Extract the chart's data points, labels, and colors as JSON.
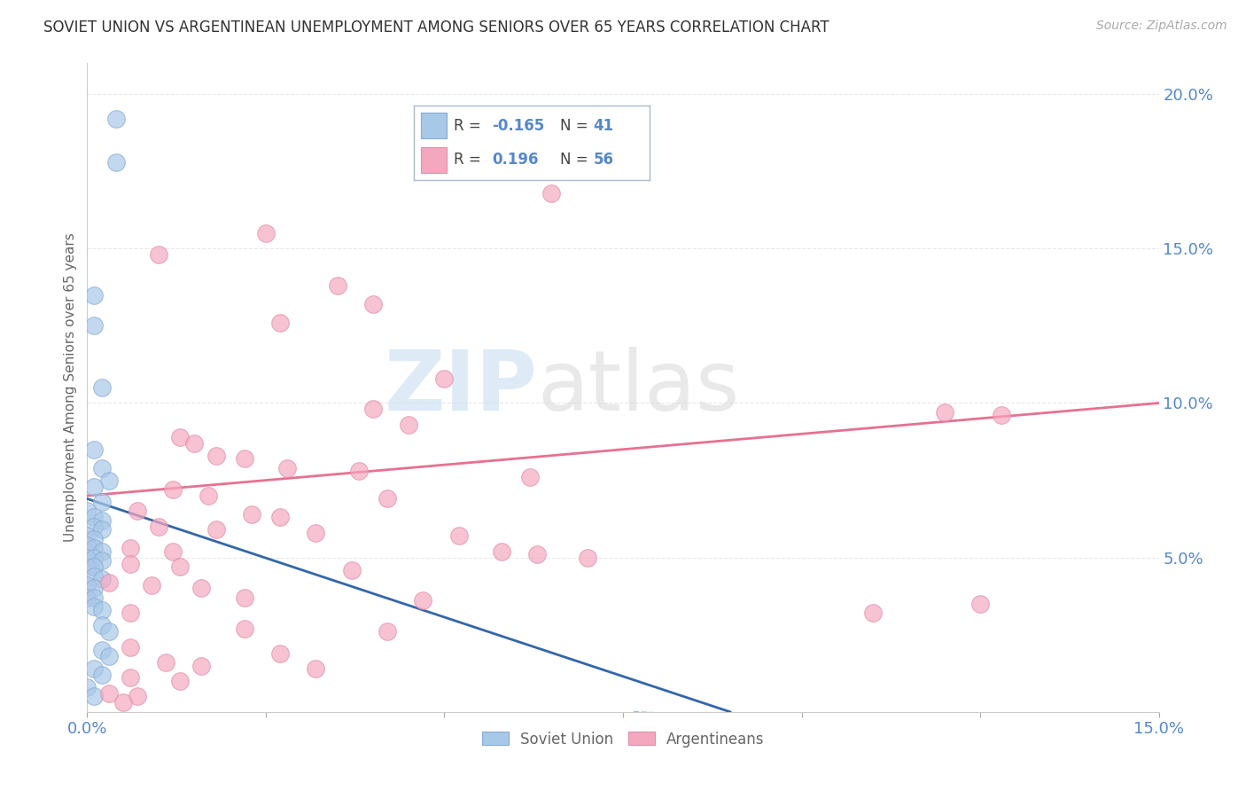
{
  "title": "SOVIET UNION VS ARGENTINEAN UNEMPLOYMENT AMONG SENIORS OVER 65 YEARS CORRELATION CHART",
  "source": "Source: ZipAtlas.com",
  "ylabel": "Unemployment Among Seniors over 65 years",
  "xlim": [
    0.0,
    0.15
  ],
  "ylim": [
    0.0,
    0.21
  ],
  "soviet_R": -0.165,
  "soviet_N": 41,
  "arg_R": 0.196,
  "arg_N": 56,
  "soviet_color": "#a8c8e8",
  "arg_color": "#f4a8c0",
  "soviet_line_color": "#3366aa",
  "arg_line_color": "#e87090",
  "legend_border_color": "#aabbcc",
  "grid_color": "#e8e8e8",
  "tick_color": "#5588cc",
  "soviet_points": [
    [
      0.004,
      0.192
    ],
    [
      0.004,
      0.178
    ],
    [
      0.001,
      0.135
    ],
    [
      0.001,
      0.125
    ],
    [
      0.002,
      0.105
    ],
    [
      0.001,
      0.085
    ],
    [
      0.002,
      0.079
    ],
    [
      0.003,
      0.075
    ],
    [
      0.001,
      0.073
    ],
    [
      0.002,
      0.068
    ],
    [
      0.0,
      0.065
    ],
    [
      0.001,
      0.063
    ],
    [
      0.002,
      0.062
    ],
    [
      0.001,
      0.06
    ],
    [
      0.002,
      0.059
    ],
    [
      0.0,
      0.057
    ],
    [
      0.001,
      0.056
    ],
    [
      0.0,
      0.054
    ],
    [
      0.001,
      0.053
    ],
    [
      0.002,
      0.052
    ],
    [
      0.0,
      0.05
    ],
    [
      0.001,
      0.05
    ],
    [
      0.002,
      0.049
    ],
    [
      0.0,
      0.047
    ],
    [
      0.001,
      0.047
    ],
    [
      0.001,
      0.044
    ],
    [
      0.002,
      0.043
    ],
    [
      0.0,
      0.041
    ],
    [
      0.001,
      0.04
    ],
    [
      0.0,
      0.037
    ],
    [
      0.001,
      0.037
    ],
    [
      0.001,
      0.034
    ],
    [
      0.002,
      0.033
    ],
    [
      0.002,
      0.028
    ],
    [
      0.003,
      0.026
    ],
    [
      0.002,
      0.02
    ],
    [
      0.003,
      0.018
    ],
    [
      0.001,
      0.014
    ],
    [
      0.002,
      0.012
    ],
    [
      0.0,
      0.008
    ],
    [
      0.001,
      0.005
    ]
  ],
  "arg_points": [
    [
      0.065,
      0.168
    ],
    [
      0.025,
      0.155
    ],
    [
      0.01,
      0.148
    ],
    [
      0.035,
      0.138
    ],
    [
      0.04,
      0.132
    ],
    [
      0.027,
      0.126
    ],
    [
      0.05,
      0.108
    ],
    [
      0.04,
      0.098
    ],
    [
      0.045,
      0.093
    ],
    [
      0.013,
      0.089
    ],
    [
      0.015,
      0.087
    ],
    [
      0.018,
      0.083
    ],
    [
      0.022,
      0.082
    ],
    [
      0.028,
      0.079
    ],
    [
      0.038,
      0.078
    ],
    [
      0.062,
      0.076
    ],
    [
      0.012,
      0.072
    ],
    [
      0.017,
      0.07
    ],
    [
      0.042,
      0.069
    ],
    [
      0.007,
      0.065
    ],
    [
      0.023,
      0.064
    ],
    [
      0.027,
      0.063
    ],
    [
      0.01,
      0.06
    ],
    [
      0.018,
      0.059
    ],
    [
      0.032,
      0.058
    ],
    [
      0.052,
      0.057
    ],
    [
      0.006,
      0.053
    ],
    [
      0.012,
      0.052
    ],
    [
      0.063,
      0.051
    ],
    [
      0.006,
      0.048
    ],
    [
      0.013,
      0.047
    ],
    [
      0.037,
      0.046
    ],
    [
      0.003,
      0.042
    ],
    [
      0.009,
      0.041
    ],
    [
      0.016,
      0.04
    ],
    [
      0.022,
      0.037
    ],
    [
      0.047,
      0.036
    ],
    [
      0.006,
      0.032
    ],
    [
      0.022,
      0.027
    ],
    [
      0.042,
      0.026
    ],
    [
      0.006,
      0.021
    ],
    [
      0.027,
      0.019
    ],
    [
      0.011,
      0.016
    ],
    [
      0.016,
      0.015
    ],
    [
      0.032,
      0.014
    ],
    [
      0.006,
      0.011
    ],
    [
      0.013,
      0.01
    ],
    [
      0.003,
      0.006
    ],
    [
      0.007,
      0.005
    ],
    [
      0.12,
      0.097
    ],
    [
      0.128,
      0.096
    ],
    [
      0.058,
      0.052
    ],
    [
      0.07,
      0.05
    ],
    [
      0.125,
      0.035
    ],
    [
      0.11,
      0.032
    ],
    [
      0.005,
      0.003
    ]
  ],
  "soviet_line": {
    "x0": 0.0,
    "y0": 0.069,
    "x1": 0.09,
    "y1": 0.0
  },
  "arg_line": {
    "x0": 0.0,
    "y0": 0.07,
    "x1": 0.15,
    "y1": 0.1
  }
}
